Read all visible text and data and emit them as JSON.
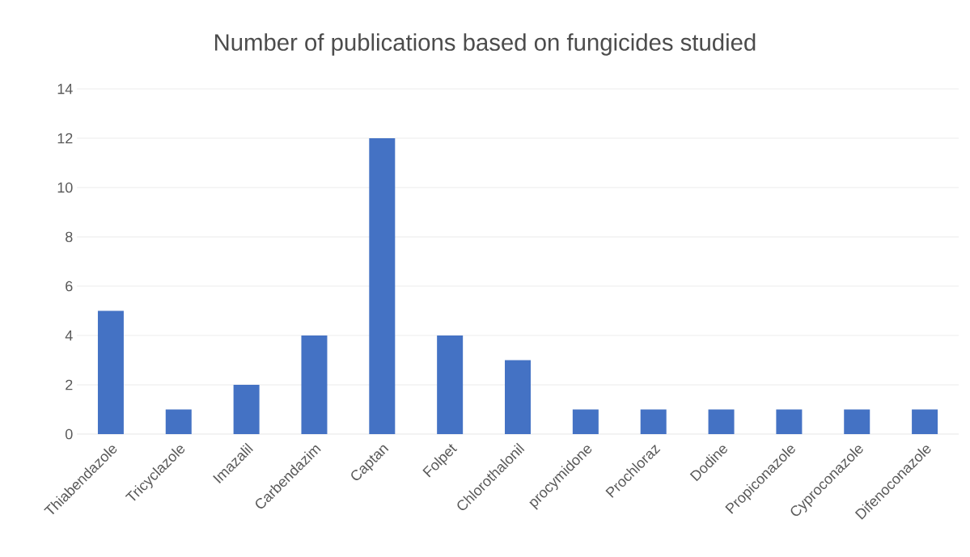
{
  "chart_data": {
    "type": "bar",
    "title": "Number of publications based on fungicides studied",
    "categories": [
      "Thiabendazole",
      "Tricyclazole",
      "Imazalil",
      "Carbendazim",
      "Captan",
      "Folpet",
      "Chlorothalonil",
      "procymidone",
      "Prochloraz",
      "Dodine",
      "Propiconazole",
      "Cyproconazole",
      "Difenoconazole"
    ],
    "values": [
      5,
      1,
      2,
      4,
      12,
      4,
      3,
      1,
      1,
      1,
      1,
      1,
      1
    ],
    "color": "#4472c4",
    "ylim": [
      0,
      14
    ],
    "yticks": [
      0,
      2,
      4,
      6,
      8,
      10,
      12,
      14
    ],
    "grid": "y"
  }
}
